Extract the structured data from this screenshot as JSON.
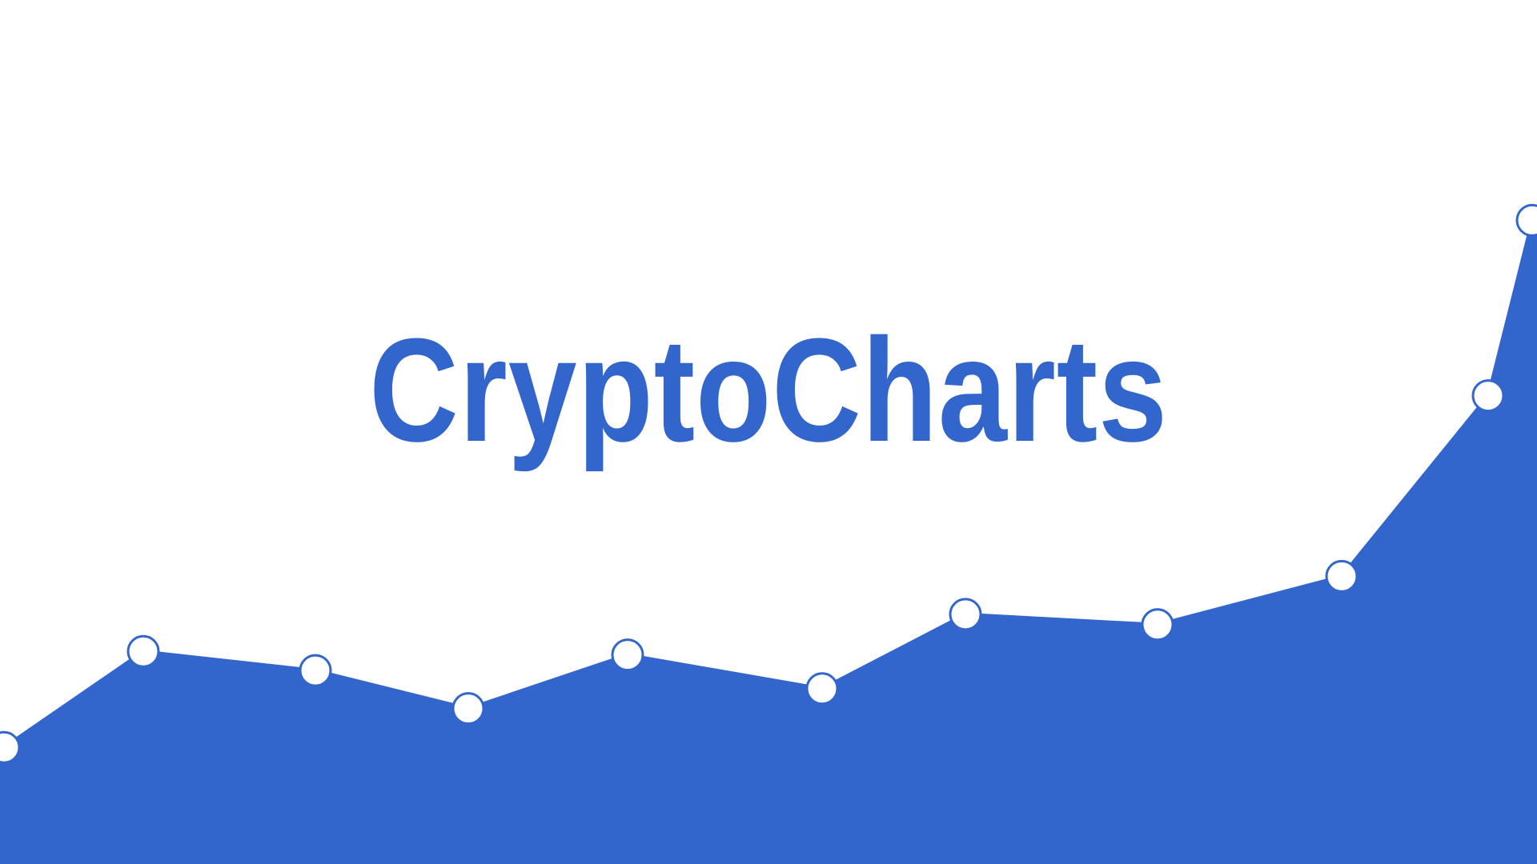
{
  "brand": {
    "name": "CryptoCharts",
    "color": "#3366CC"
  },
  "graphic": {
    "type": "area-line",
    "fill_color": "#3366CC",
    "marker_fill": "#ffffff",
    "marker_stroke": "#3366CC",
    "values": [
      0.135,
      0.246,
      0.224,
      0.18,
      0.242,
      0.203,
      0.289,
      0.277,
      0.333,
      0.542,
      0.745
    ]
  }
}
